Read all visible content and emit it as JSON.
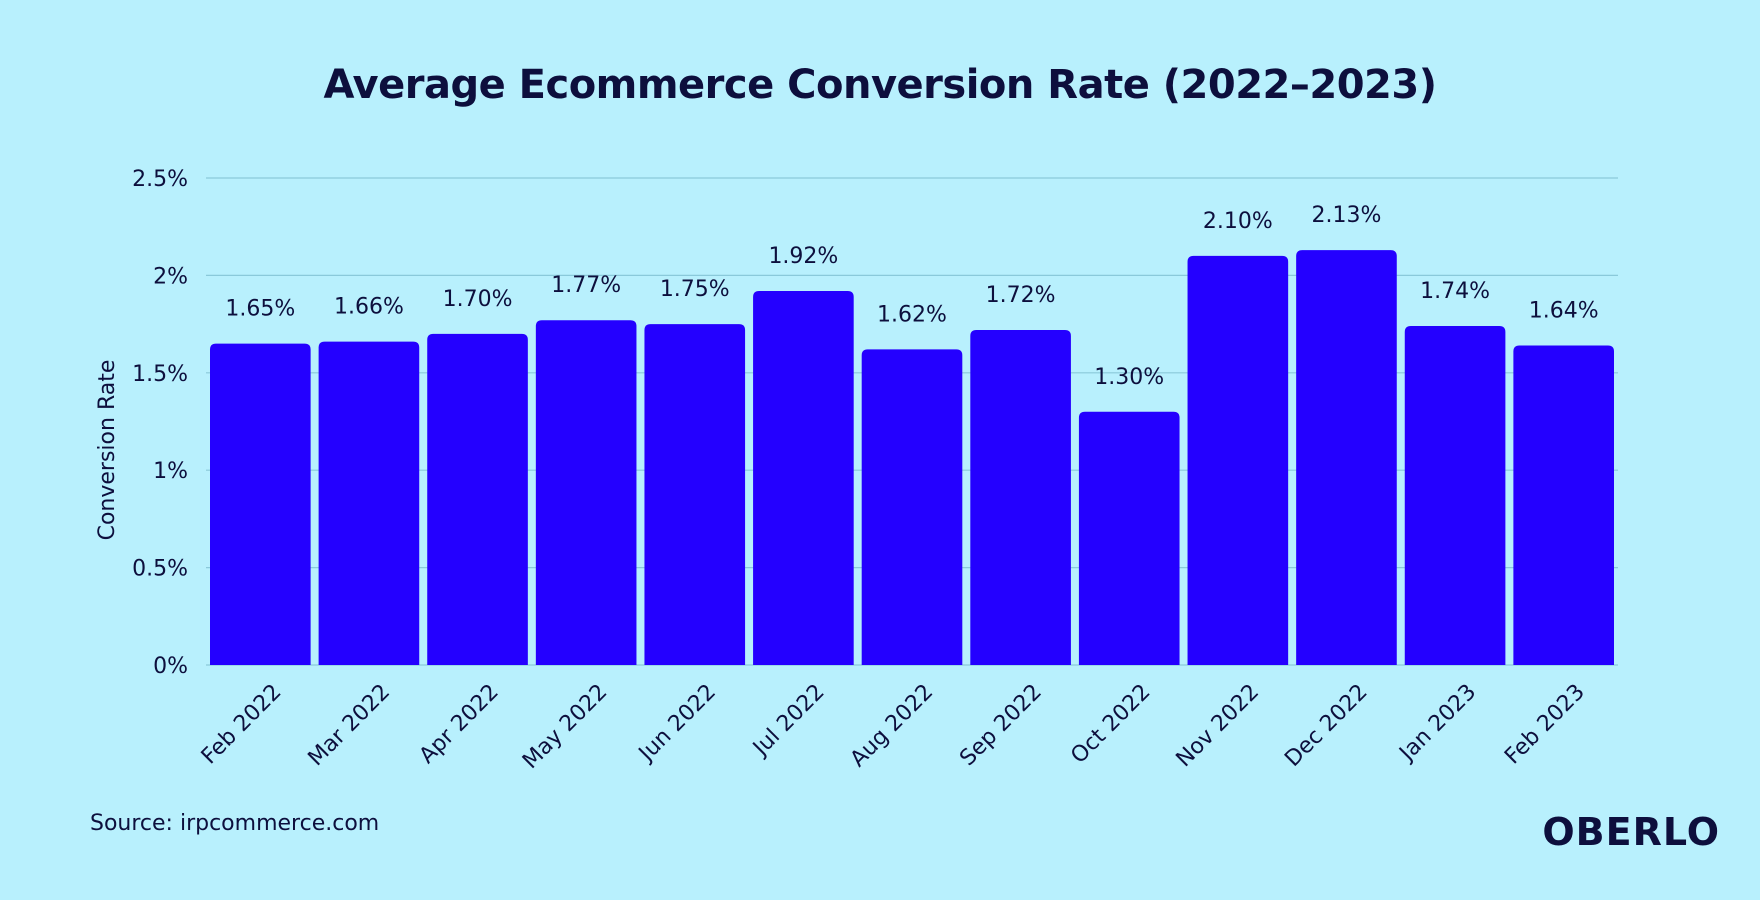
{
  "colors": {
    "background": "#b8f0fd",
    "bar": "#2400ff",
    "text": "#0d0f3d",
    "grid": "#8ac9da"
  },
  "footer": {
    "source": "Source: irpcommerce.com",
    "logo": "OBERLO"
  },
  "chart_data": {
    "type": "bar",
    "title": "Average Ecommerce Conversion Rate (2022–2023)",
    "xlabel": "",
    "ylabel": "Conversion Rate",
    "ylim": [
      0,
      2.5
    ],
    "yticks": [
      0,
      0.5,
      1,
      1.5,
      2,
      2.5
    ],
    "ytick_labels": [
      "0%",
      "0.5%",
      "1%",
      "1.5%",
      "2%",
      "2.5%"
    ],
    "grid": true,
    "categories": [
      "Feb 2022",
      "Mar 2022",
      "Apr 2022",
      "May 2022",
      "Jun 2022",
      "Jul 2022",
      "Aug 2022",
      "Sep 2022",
      "Oct 2022",
      "Nov 2022",
      "Dec 2022",
      "Jan 2023",
      "Feb 2023"
    ],
    "values": [
      1.65,
      1.66,
      1.7,
      1.77,
      1.75,
      1.92,
      1.62,
      1.72,
      1.3,
      2.1,
      2.13,
      1.74,
      1.64
    ],
    "data_labels": [
      "1.65%",
      "1.66%",
      "1.70%",
      "1.77%",
      "1.75%",
      "1.92%",
      "1.62%",
      "1.72%",
      "1.30%",
      "2.10%",
      "2.13%",
      "1.74%",
      "1.64%"
    ]
  }
}
